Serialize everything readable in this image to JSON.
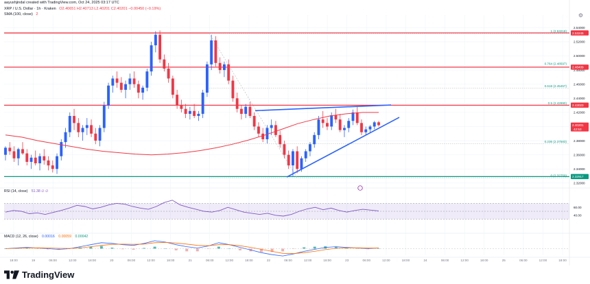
{
  "header": {
    "author_line": "aayushjindal created with TradingView.com, Oct 24, 2025 03:17 UTC",
    "symbol": "XRP / U.S. Dollar · 1h · Kraken",
    "ohlc": "O2.40651 H2.40713 L2.40201 C2.40201 −0.00450 (−0.19%)",
    "sma": "SMA (100, close)",
    "sma_value": "2"
  },
  "indicators": {
    "rsi_label": "RSI (14, close)",
    "rsi_values": "51.38",
    "rsi_extra": "51.38 ∅ ∅",
    "macd_label": "MACD (12, 26, close)",
    "macd_values": [
      "0.00016",
      "0.00059",
      "0.00042"
    ]
  },
  "footer": {
    "brand": "TradingView"
  },
  "chart_data": {
    "type": "candlestick",
    "price_axis_ticks": [
      "2.54000",
      "2.52000",
      "2.50000",
      "2.48000",
      "2.46000",
      "2.44000",
      "2.42000",
      "2.40000",
      "2.38000",
      "2.36000",
      "2.34000",
      "2.32000"
    ],
    "ylim": [
      2.315,
      2.55
    ],
    "time_axis_labels": [
      "18:00",
      "19",
      "06:00",
      "12:00",
      "18:00",
      "20",
      "06:00",
      "12:00",
      "18:00",
      "21",
      "06:00",
      "12:00",
      "18:00",
      "22",
      "06:00",
      "12:00",
      "18:00",
      "23",
      "06:00",
      "12:00",
      "18:00",
      "24",
      "06:00",
      "12:00",
      "18:00",
      "25",
      "06:00",
      "12:00",
      "18:00"
    ],
    "price_labels": [
      {
        "value": 2.53246,
        "text": "2.53246",
        "color": "#f23645"
      },
      {
        "value": 2.48409,
        "text": "2.48409",
        "color": "#f23645"
      },
      {
        "value": 2.43023,
        "text": "2.43023",
        "color": "#f23645"
      },
      {
        "value": 2.40201,
        "text": "2.40201",
        "color": "#f23645",
        "sub": "42:53"
      },
      {
        "value": 2.32917,
        "text": "2.32917",
        "color": "#089981"
      }
    ],
    "fib_levels": [
      {
        "ratio": "1",
        "value": 2.53218,
        "label": "1 (2.53218)"
      },
      {
        "ratio": "0.764",
        "value": 2.48597,
        "label": "0.764 (2.48597)"
      },
      {
        "ratio": "0.618",
        "value": 2.45457,
        "label": "0.618 (2.45457)"
      },
      {
        "ratio": "0.5",
        "value": 2.4299,
        "label": "0.5 (2.42990)"
      },
      {
        "ratio": "0.236",
        "value": 2.37583,
        "label": "0.236 (2.37583)"
      },
      {
        "ratio": "0",
        "value": 2.3275,
        "label": "0 (2.32750)"
      }
    ],
    "horizontal_lines": [
      {
        "value": 2.53246,
        "color": "#f23645"
      },
      {
        "value": 2.48409,
        "color": "#f23645"
      },
      {
        "value": 2.43023,
        "color": "#f23645"
      },
      {
        "value": 2.32917,
        "color": "#089981"
      }
    ],
    "candles": [
      [
        2.36,
        2.372,
        2.352,
        2.37
      ],
      [
        2.37,
        2.378,
        2.36,
        2.365
      ],
      [
        2.365,
        2.372,
        2.35,
        2.355
      ],
      [
        2.355,
        2.37,
        2.345,
        2.368
      ],
      [
        2.368,
        2.378,
        2.36,
        2.362
      ],
      [
        2.362,
        2.368,
        2.345,
        2.35
      ],
      [
        2.35,
        2.36,
        2.34,
        2.356
      ],
      [
        2.356,
        2.366,
        2.345,
        2.348
      ],
      [
        2.348,
        2.362,
        2.338,
        2.358
      ],
      [
        2.358,
        2.368,
        2.346,
        2.352
      ],
      [
        2.352,
        2.358,
        2.338,
        2.345
      ],
      [
        2.345,
        2.352,
        2.335,
        2.34
      ],
      [
        2.34,
        2.362,
        2.333,
        2.358
      ],
      [
        2.358,
        2.382,
        2.352,
        2.378
      ],
      [
        2.378,
        2.398,
        2.37,
        2.392
      ],
      [
        2.392,
        2.42,
        2.385,
        2.415
      ],
      [
        2.415,
        2.425,
        2.395,
        2.405
      ],
      [
        2.405,
        2.412,
        2.385,
        2.392
      ],
      [
        2.392,
        2.402,
        2.38,
        2.398
      ],
      [
        2.398,
        2.412,
        2.388,
        2.402
      ],
      [
        2.402,
        2.41,
        2.385,
        2.39
      ],
      [
        2.39,
        2.398,
        2.375,
        2.38
      ],
      [
        2.38,
        2.402,
        2.372,
        2.398
      ],
      [
        2.398,
        2.435,
        2.392,
        2.43
      ],
      [
        2.43,
        2.462,
        2.425,
        2.458
      ],
      [
        2.458,
        2.472,
        2.448,
        2.468
      ],
      [
        2.468,
        2.478,
        2.455,
        2.462
      ],
      [
        2.462,
        2.47,
        2.448,
        2.452
      ],
      [
        2.452,
        2.465,
        2.44,
        2.46
      ],
      [
        2.46,
        2.475,
        2.452,
        2.468
      ],
      [
        2.468,
        2.478,
        2.455,
        2.46
      ],
      [
        2.46,
        2.465,
        2.44,
        2.448
      ],
      [
        2.448,
        2.458,
        2.438,
        2.455
      ],
      [
        2.455,
        2.482,
        2.45,
        2.478
      ],
      [
        2.478,
        2.52,
        2.472,
        2.515
      ],
      [
        2.515,
        2.535,
        2.505,
        2.53
      ],
      [
        2.53,
        2.536,
        2.49,
        2.495
      ],
      [
        2.495,
        2.502,
        2.478,
        2.482
      ],
      [
        2.482,
        2.49,
        2.462,
        2.468
      ],
      [
        2.468,
        2.472,
        2.44,
        2.445
      ],
      [
        2.445,
        2.452,
        2.425,
        2.43
      ],
      [
        2.43,
        2.438,
        2.42,
        2.425
      ],
      [
        2.425,
        2.432,
        2.412,
        2.418
      ],
      [
        2.418,
        2.428,
        2.41,
        2.422
      ],
      [
        2.422,
        2.432,
        2.412,
        2.415
      ],
      [
        2.415,
        2.422,
        2.408,
        2.418
      ],
      [
        2.418,
        2.452,
        2.412,
        2.448
      ],
      [
        2.448,
        2.492,
        2.442,
        2.488
      ],
      [
        2.488,
        2.53,
        2.48,
        2.522
      ],
      [
        2.522,
        2.528,
        2.485,
        2.49
      ],
      [
        2.49,
        2.498,
        2.475,
        2.48
      ],
      [
        2.48,
        2.492,
        2.47,
        2.488
      ],
      [
        2.488,
        2.495,
        2.46,
        2.465
      ],
      [
        2.465,
        2.472,
        2.435,
        2.44
      ],
      [
        2.44,
        2.448,
        2.42,
        2.425
      ],
      [
        2.425,
        2.43,
        2.41,
        2.418
      ],
      [
        2.418,
        2.432,
        2.412,
        2.428
      ],
      [
        2.428,
        2.435,
        2.412,
        2.415
      ],
      [
        2.415,
        2.42,
        2.395,
        2.4
      ],
      [
        2.4,
        2.406,
        2.385,
        2.39
      ],
      [
        2.39,
        2.398,
        2.378,
        2.382
      ],
      [
        2.382,
        2.402,
        2.376,
        2.398
      ],
      [
        2.398,
        2.41,
        2.388,
        2.402
      ],
      [
        2.402,
        2.408,
        2.385,
        2.388
      ],
      [
        2.388,
        2.394,
        2.37,
        2.375
      ],
      [
        2.375,
        2.38,
        2.355,
        2.36
      ],
      [
        2.36,
        2.366,
        2.34,
        2.345
      ],
      [
        2.345,
        2.368,
        2.33,
        2.365
      ],
      [
        2.365,
        2.372,
        2.334,
        2.34
      ],
      [
        2.34,
        2.358,
        2.336,
        2.355
      ],
      [
        2.355,
        2.368,
        2.35,
        2.365
      ],
      [
        2.365,
        2.378,
        2.358,
        2.375
      ],
      [
        2.375,
        2.392,
        2.37,
        2.388
      ],
      [
        2.388,
        2.415,
        2.382,
        2.41
      ],
      [
        2.41,
        2.422,
        2.398,
        2.405
      ],
      [
        2.405,
        2.412,
        2.395,
        2.4
      ],
      [
        2.4,
        2.42,
        2.395,
        2.416
      ],
      [
        2.416,
        2.425,
        2.405,
        2.41
      ],
      [
        2.41,
        2.418,
        2.392,
        2.395
      ],
      [
        2.395,
        2.402,
        2.385,
        2.398
      ],
      [
        2.398,
        2.412,
        2.392,
        2.408
      ],
      [
        2.408,
        2.424,
        2.402,
        2.42
      ],
      [
        2.42,
        2.428,
        2.402,
        2.405
      ],
      [
        2.405,
        2.41,
        2.388,
        2.392
      ],
      [
        2.392,
        2.4,
        2.388,
        2.396
      ],
      [
        2.396,
        2.402,
        2.392,
        2.4
      ],
      [
        2.4,
        2.408,
        2.396,
        2.406
      ],
      [
        2.406,
        2.408,
        2.4,
        2.402
      ]
    ],
    "sma100": [
      2.388,
      2.385,
      2.38,
      2.376,
      2.372,
      2.368,
      2.365,
      2.363,
      2.361,
      2.36,
      2.361,
      2.363,
      2.366,
      2.37,
      2.375,
      2.381,
      2.388,
      2.396,
      2.404,
      2.41,
      2.415,
      2.418,
      2.42,
      2.42
    ],
    "rsi": [
      48,
      52,
      50,
      44,
      46,
      42,
      47,
      52,
      58,
      65,
      62,
      56,
      60,
      66,
      70,
      68,
      62,
      58,
      55,
      62,
      72,
      78,
      66,
      60,
      55,
      50,
      48,
      52,
      60,
      54,
      48,
      45,
      42,
      45,
      40,
      38,
      42,
      50,
      56,
      60,
      54,
      58,
      52,
      48,
      52,
      55,
      53,
      51
    ],
    "rsi_bands": [
      70,
      30
    ],
    "macd_line": [
      0,
      0.001,
      0.002,
      0.001,
      0,
      -0.001,
      0,
      0.003,
      0.006,
      0.009,
      0.008,
      0.006,
      0.005,
      0.008,
      0.012,
      0.01,
      0.006,
      0.003,
      0.001,
      0.004,
      0.009,
      0.006,
      0.002,
      -0.002,
      -0.006,
      -0.009,
      -0.011,
      -0.008,
      -0.004,
      -0.001,
      0.002,
      0.003,
      0.002,
      0.001,
      0.0,
      0.001
    ],
    "macd_signal": [
      0,
      0.0005,
      0.001,
      0.0012,
      0.001,
      0.0005,
      0.0003,
      0.001,
      0.003,
      0.005,
      0.0065,
      0.0068,
      0.0065,
      0.007,
      0.009,
      0.0095,
      0.0085,
      0.007,
      0.005,
      0.0045,
      0.006,
      0.006,
      0.0045,
      0.002,
      -0.001,
      -0.004,
      -0.007,
      -0.0075,
      -0.006,
      -0.004,
      -0.0015,
      0.0005,
      0.0012,
      0.0012,
      0.0008,
      0.0008
    ]
  }
}
